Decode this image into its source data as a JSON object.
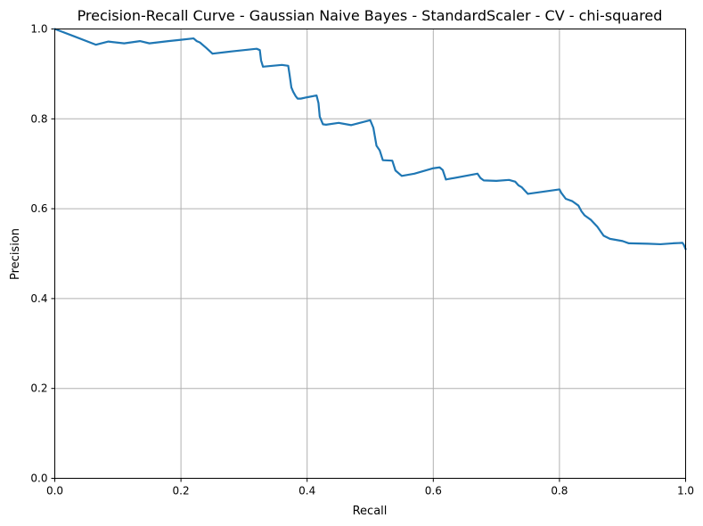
{
  "chart_data": {
    "type": "line",
    "title": "Precision-Recall Curve - Gaussian Naive Bayes - StandardScaler - CV - chi-squared",
    "xlabel": "Recall",
    "ylabel": "Precision",
    "xlim": [
      0,
      1
    ],
    "ylim": [
      0,
      1
    ],
    "xticks": [
      "0.0",
      "0.2",
      "0.4",
      "0.6",
      "0.8",
      "1.0"
    ],
    "yticks": [
      "0.0",
      "0.2",
      "0.4",
      "0.6",
      "0.8",
      "1.0"
    ],
    "grid": true,
    "colors": {
      "line": "#1f77b4",
      "grid": "#b0b0b0",
      "axes": "#000000"
    },
    "series": [
      {
        "x": [
          0.0,
          0.03,
          0.065,
          0.085,
          0.11,
          0.135,
          0.15,
          0.18,
          0.2,
          0.22,
          0.225,
          0.23,
          0.24,
          0.25,
          0.28,
          0.3,
          0.32,
          0.325,
          0.327,
          0.33,
          0.345,
          0.36,
          0.37,
          0.372,
          0.375,
          0.378,
          0.382,
          0.385,
          0.39,
          0.4,
          0.415,
          0.418,
          0.42,
          0.425,
          0.43,
          0.45,
          0.47,
          0.5,
          0.505,
          0.51,
          0.515,
          0.52,
          0.535,
          0.54,
          0.55,
          0.57,
          0.6,
          0.61,
          0.615,
          0.62,
          0.67,
          0.675,
          0.68,
          0.7,
          0.72,
          0.73,
          0.735,
          0.74,
          0.75,
          0.76,
          0.8,
          0.803,
          0.81,
          0.82,
          0.83,
          0.835,
          0.84,
          0.85,
          0.86,
          0.87,
          0.88,
          0.9,
          0.91,
          0.94,
          0.96,
          0.98,
          0.995,
          0.997,
          1.0
        ],
        "y": [
          1.0,
          0.984,
          0.965,
          0.972,
          0.968,
          0.973,
          0.968,
          0.973,
          0.976,
          0.979,
          0.973,
          0.97,
          0.958,
          0.945,
          0.95,
          0.953,
          0.956,
          0.953,
          0.93,
          0.916,
          0.918,
          0.92,
          0.918,
          0.9,
          0.87,
          0.86,
          0.85,
          0.845,
          0.845,
          0.848,
          0.852,
          0.835,
          0.805,
          0.788,
          0.787,
          0.791,
          0.786,
          0.797,
          0.78,
          0.74,
          0.73,
          0.708,
          0.707,
          0.685,
          0.673,
          0.678,
          0.69,
          0.692,
          0.686,
          0.665,
          0.678,
          0.668,
          0.663,
          0.662,
          0.664,
          0.66,
          0.652,
          0.648,
          0.633,
          0.635,
          0.643,
          0.635,
          0.622,
          0.617,
          0.607,
          0.594,
          0.585,
          0.575,
          0.56,
          0.54,
          0.533,
          0.528,
          0.523,
          0.522,
          0.521,
          0.523,
          0.524,
          0.52,
          0.51
        ]
      }
    ]
  }
}
